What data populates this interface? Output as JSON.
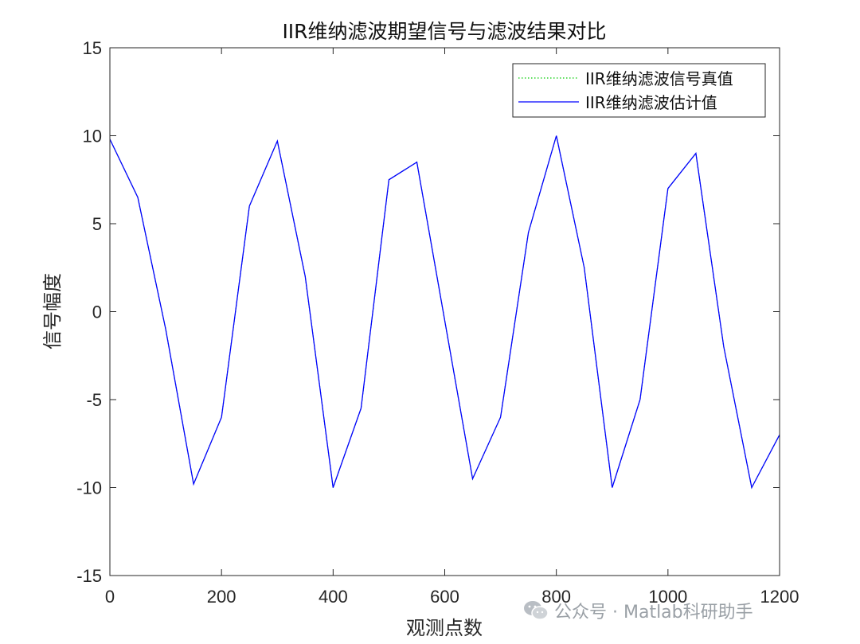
{
  "chart_data": {
    "type": "line",
    "title": "IIR维纳滤波期望信号与滤波结果对比",
    "xlabel": "观测点数",
    "ylabel": "信号幅度",
    "xlim": [
      0,
      1200
    ],
    "ylim": [
      -15,
      15
    ],
    "xticks": [
      0,
      200,
      400,
      600,
      800,
      1000,
      1200
    ],
    "yticks": [
      -15,
      -10,
      -5,
      0,
      5,
      10,
      15
    ],
    "grid": false,
    "legend_position": "top-right",
    "series": [
      {
        "name": "IIR维纳滤波信号真值",
        "style": "dotted",
        "color": "#00cc00",
        "x": [
          0,
          50,
          100,
          150,
          200,
          250,
          300,
          350,
          400,
          450,
          500,
          550,
          600,
          650,
          700,
          750,
          800,
          850,
          900,
          950,
          1000,
          1050,
          1100,
          1150,
          1200
        ],
        "y": [
          9.8,
          6.5,
          -1.0,
          -9.8,
          -6.0,
          6.0,
          9.7,
          2.0,
          -10.0,
          -5.5,
          7.5,
          8.5,
          -0.5,
          -9.5,
          -6.0,
          4.5,
          10.0,
          2.5,
          -10.0,
          -5.0,
          7.0,
          9.0,
          -2.0,
          -10.0,
          -7.0
        ]
      },
      {
        "name": "IIR维纳滤波估计值",
        "style": "solid",
        "color": "#0000ff",
        "x": [
          0,
          50,
          100,
          150,
          200,
          250,
          300,
          350,
          400,
          450,
          500,
          550,
          600,
          650,
          700,
          750,
          800,
          850,
          900,
          950,
          1000,
          1050,
          1100,
          1150,
          1200
        ],
        "y": [
          9.8,
          6.5,
          -1.0,
          -9.8,
          -6.0,
          6.0,
          9.7,
          2.0,
          -10.0,
          -5.5,
          7.5,
          8.5,
          -0.5,
          -9.5,
          -6.0,
          4.5,
          10.0,
          2.5,
          -10.0,
          -5.0,
          7.0,
          9.0,
          -2.0,
          -10.0,
          -7.0
        ]
      }
    ]
  },
  "watermark": {
    "icon": "wechat-icon",
    "text": "公众号 · Matlab科研助手"
  }
}
